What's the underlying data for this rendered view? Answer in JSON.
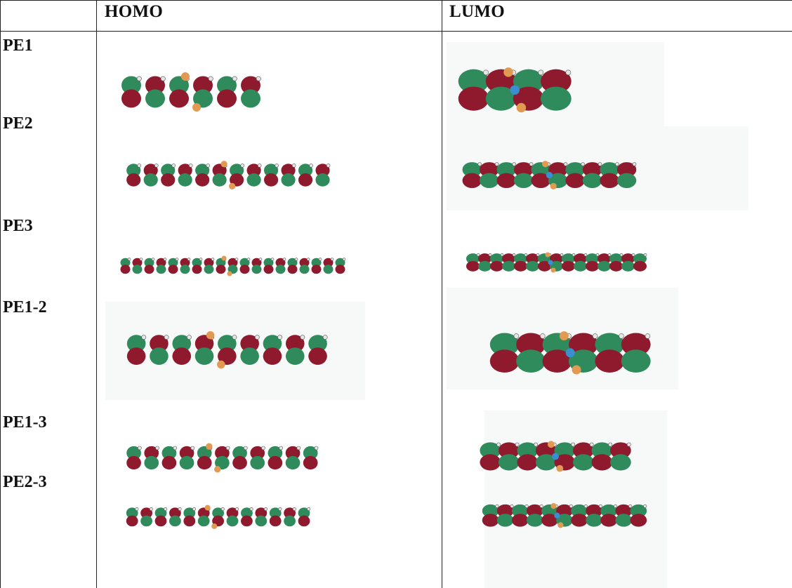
{
  "table": {
    "headers": {
      "corner": "",
      "homo": "HOMO",
      "lumo": "LUMO"
    },
    "rows": [
      {
        "label": "PE1"
      },
      {
        "label": "PE2"
      },
      {
        "label": "PE3"
      },
      {
        "label": "PE1-2"
      },
      {
        "label": "PE1-3"
      },
      {
        "label": "PE2-3"
      }
    ]
  },
  "colors": {
    "green_lobe": "#2f8a5c",
    "red_lobe": "#8f1a2e",
    "hydrogen": "#e6e6e6",
    "phosphorus": "#e29a52",
    "metal": "#3b8fd0"
  }
}
